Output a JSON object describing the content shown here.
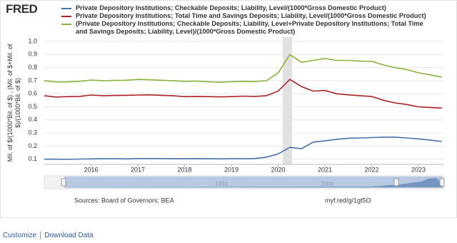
{
  "logo": "FRED",
  "chart_data": {
    "type": "line",
    "x": [
      2015,
      2015.25,
      2015.5,
      2015.75,
      2016,
      2016.25,
      2016.5,
      2016.75,
      2017,
      2017.25,
      2017.5,
      2017.75,
      2018,
      2018.25,
      2018.5,
      2018.75,
      2019,
      2019.25,
      2019.5,
      2019.75,
      2020,
      2020.25,
      2020.5,
      2020.75,
      2021,
      2021.25,
      2021.5,
      2021.75,
      2022,
      2022.25,
      2022.5,
      2022.75,
      2023,
      2023.25,
      2023.5
    ],
    "series": [
      {
        "name": "Private Depository Institutions; Checkable Deposits; Liability, Level/(1000*Gross Domestic Product)",
        "color": "#4572a7",
        "values": [
          0.1,
          0.1,
          0.098,
          0.101,
          0.102,
          0.103,
          0.103,
          0.102,
          0.104,
          0.105,
          0.104,
          0.103,
          0.103,
          0.104,
          0.103,
          0.102,
          0.103,
          0.103,
          0.105,
          0.115,
          0.14,
          0.19,
          0.18,
          0.23,
          0.24,
          0.252,
          0.26,
          0.262,
          0.265,
          0.268,
          0.268,
          0.262,
          0.255,
          0.245,
          0.235
        ]
      },
      {
        "name": "Private Depository Institutions; Total Time and Savings Deposits; Liability, Level/(1000*Gross Domestic Product)",
        "color": "#aa2222",
        "values": [
          0.585,
          0.575,
          0.578,
          0.58,
          0.59,
          0.585,
          0.587,
          0.588,
          0.59,
          0.592,
          0.588,
          0.585,
          0.578,
          0.58,
          0.578,
          0.576,
          0.578,
          0.582,
          0.58,
          0.585,
          0.62,
          0.71,
          0.655,
          0.62,
          0.625,
          0.6,
          0.592,
          0.585,
          0.58,
          0.55,
          0.53,
          0.518,
          0.5,
          0.495,
          0.49
        ]
      },
      {
        "name": "(Private Depository Institutions; Checkable Deposits; Liability, Level+Private Depository Institutions; Total Time and Savings Deposits; Liability, Level)/(1000*Gross Domestic Product)",
        "color": "#89b33a",
        "values": [
          0.7,
          0.69,
          0.69,
          0.695,
          0.705,
          0.7,
          0.702,
          0.703,
          0.71,
          0.707,
          0.703,
          0.7,
          0.695,
          0.697,
          0.692,
          0.688,
          0.692,
          0.695,
          0.693,
          0.7,
          0.76,
          0.9,
          0.84,
          0.855,
          0.87,
          0.855,
          0.855,
          0.85,
          0.848,
          0.82,
          0.8,
          0.785,
          0.76,
          0.745,
          0.728
        ]
      }
    ],
    "ylabel": [
      "Mil. of $/(1000*Bil. of $) , (Mil. of $+Mil. of",
      "$)/(1000*Bil. of $)"
    ],
    "xlim": [
      2015,
      2023.55
    ],
    "xticks": [
      2016,
      2017,
      2018,
      2019,
      2020,
      2021,
      2022,
      2023
    ],
    "ylim": [
      0.06,
      1.0
    ],
    "yticks": [
      0.1,
      0.2,
      0.3,
      0.4,
      0.5,
      0.6,
      0.7,
      0.8,
      0.9,
      {
        "value": 1,
        "label": "1.0"
      }
    ],
    "recessions": [
      [
        2020.1,
        2020.3
      ]
    ],
    "grid": true
  },
  "navigator": {
    "labels": [
      "1980",
      "2000"
    ]
  },
  "sources": "Sources: Board of Governors; BEA",
  "link": "myf.red/g/1gt5O",
  "footer_links": [
    "Customize",
    "Download Data"
  ]
}
